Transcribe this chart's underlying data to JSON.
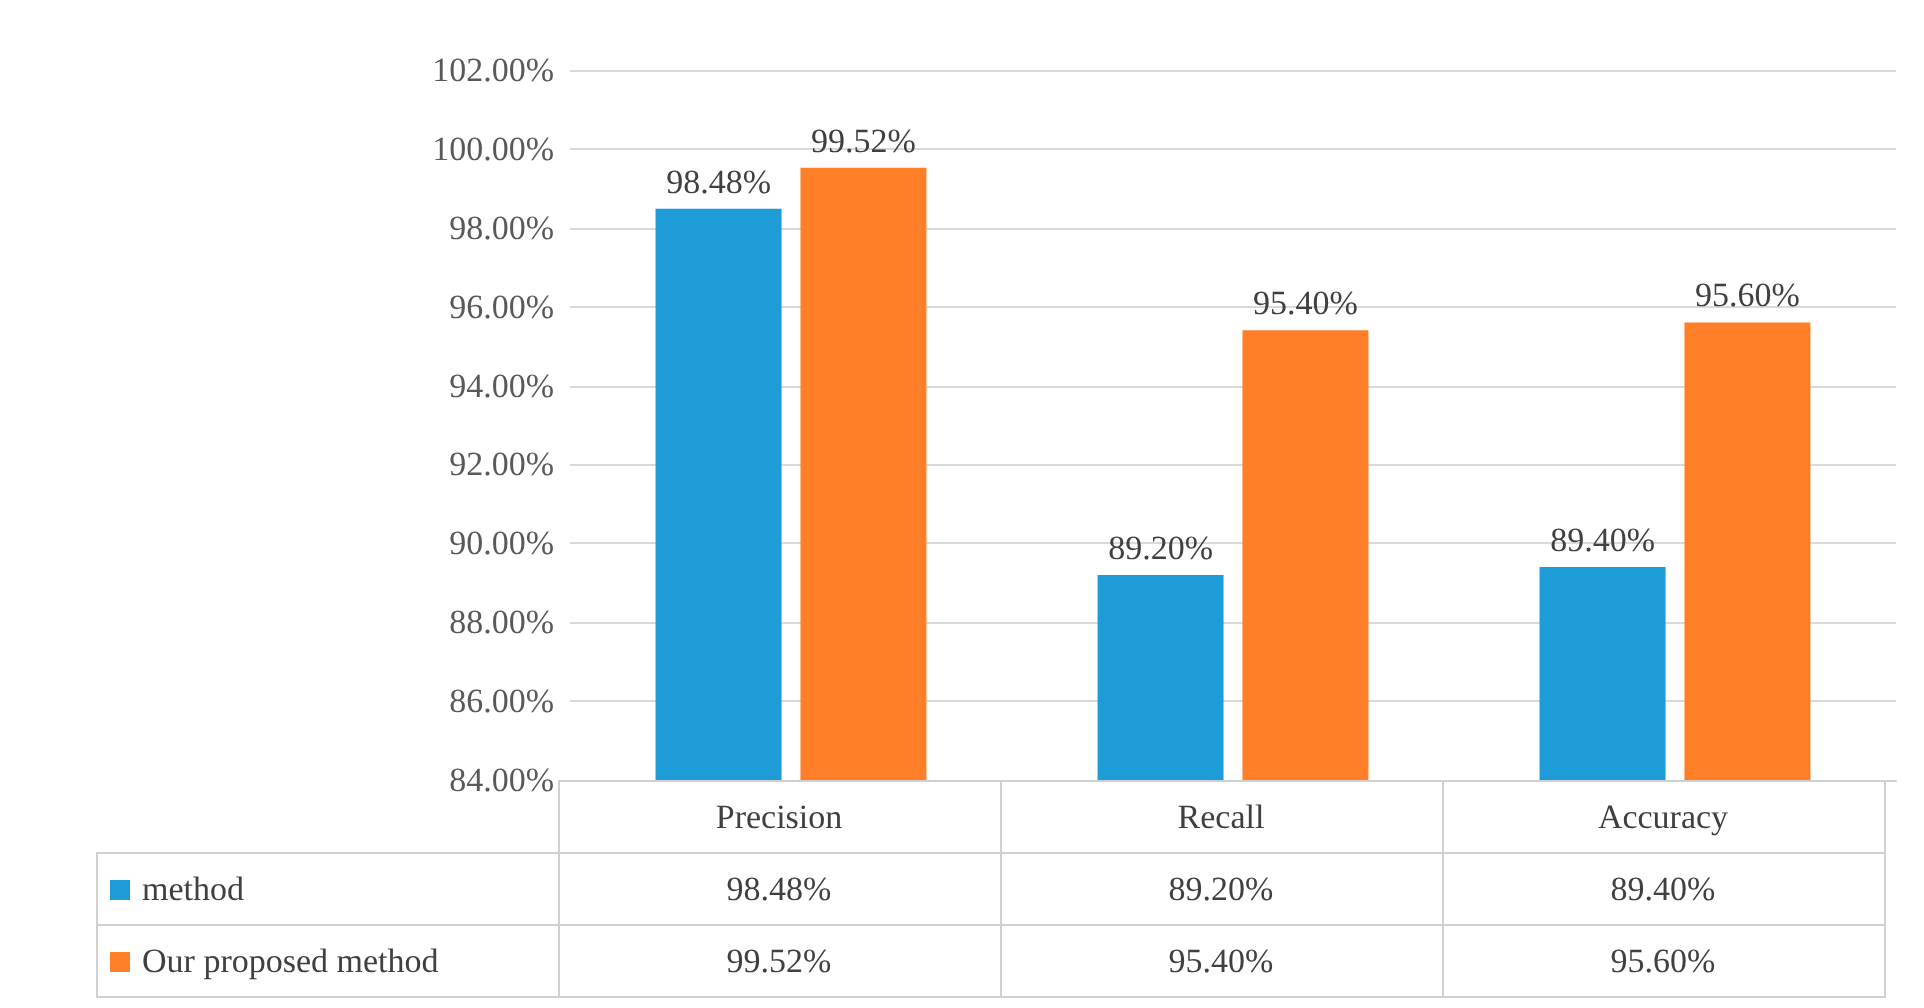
{
  "chart_data": {
    "type": "bar",
    "categories": [
      "Precision",
      "Recall",
      "Accuracy"
    ],
    "series": [
      {
        "name": "method",
        "color": "#1e9cd8",
        "values": [
          98.48,
          89.2,
          89.4
        ],
        "value_labels": [
          "98.48%",
          "89.20%",
          "89.40%"
        ]
      },
      {
        "name": "Our proposed method",
        "color": "#fe7f27",
        "values": [
          99.52,
          95.4,
          95.6
        ],
        "value_labels": [
          "99.52%",
          "95.40%",
          "95.60%"
        ]
      }
    ],
    "ylim": [
      84,
      102
    ],
    "yticks": [
      {
        "value": 84,
        "label": "84.00%"
      },
      {
        "value": 86,
        "label": "86.00%"
      },
      {
        "value": 88,
        "label": "88.00%"
      },
      {
        "value": 90,
        "label": "90.00%"
      },
      {
        "value": 92,
        "label": "92.00%"
      },
      {
        "value": 94,
        "label": "94.00%"
      },
      {
        "value": 96,
        "label": "96.00%"
      },
      {
        "value": 98,
        "label": "98.00%"
      },
      {
        "value": 100,
        "label": "100.00%"
      },
      {
        "value": 102,
        "label": "102.00%"
      }
    ],
    "grid": "y",
    "legend": "bottom"
  }
}
